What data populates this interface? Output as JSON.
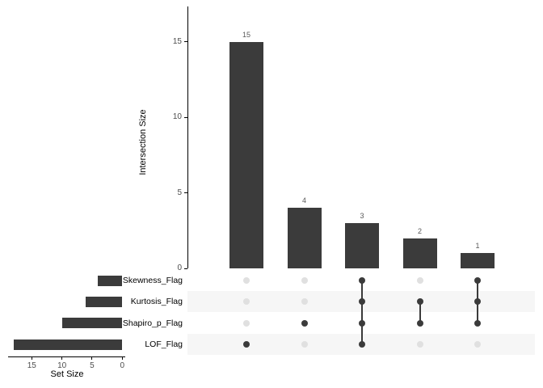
{
  "chart_data": {
    "type": "upset",
    "intersection_axis": {
      "label": "Intersection Size",
      "ticks": [
        0,
        5,
        10,
        15
      ]
    },
    "set_axis": {
      "label": "Set Size",
      "ticks": [
        15,
        10,
        5,
        0
      ]
    },
    "sets": [
      {
        "name": "Skewness_Flag",
        "size": 4
      },
      {
        "name": "Kurtosis_Flag",
        "size": 6
      },
      {
        "name": "Shapiro_p_Flag",
        "size": 10
      },
      {
        "name": "LOF_Flag",
        "size": 18
      }
    ],
    "intersections": [
      {
        "size": 15,
        "members": [
          "LOF_Flag"
        ]
      },
      {
        "size": 4,
        "members": [
          "Shapiro_p_Flag"
        ]
      },
      {
        "size": 3,
        "members": [
          "Skewness_Flag",
          "Kurtosis_Flag",
          "Shapiro_p_Flag",
          "LOF_Flag"
        ]
      },
      {
        "size": 2,
        "members": [
          "Kurtosis_Flag",
          "Shapiro_p_Flag"
        ]
      },
      {
        "size": 1,
        "members": [
          "Skewness_Flag",
          "Kurtosis_Flag",
          "Shapiro_p_Flag"
        ]
      }
    ],
    "colors": {
      "bar": "#3B3B3B",
      "active_dot": "#3B3B3B",
      "inactive_dot": "#E0E0E0",
      "row_shade": "#F6F6F6",
      "axis_line": "#000000",
      "tick_text": "#4D4D4D",
      "count_text": "#595959"
    }
  }
}
